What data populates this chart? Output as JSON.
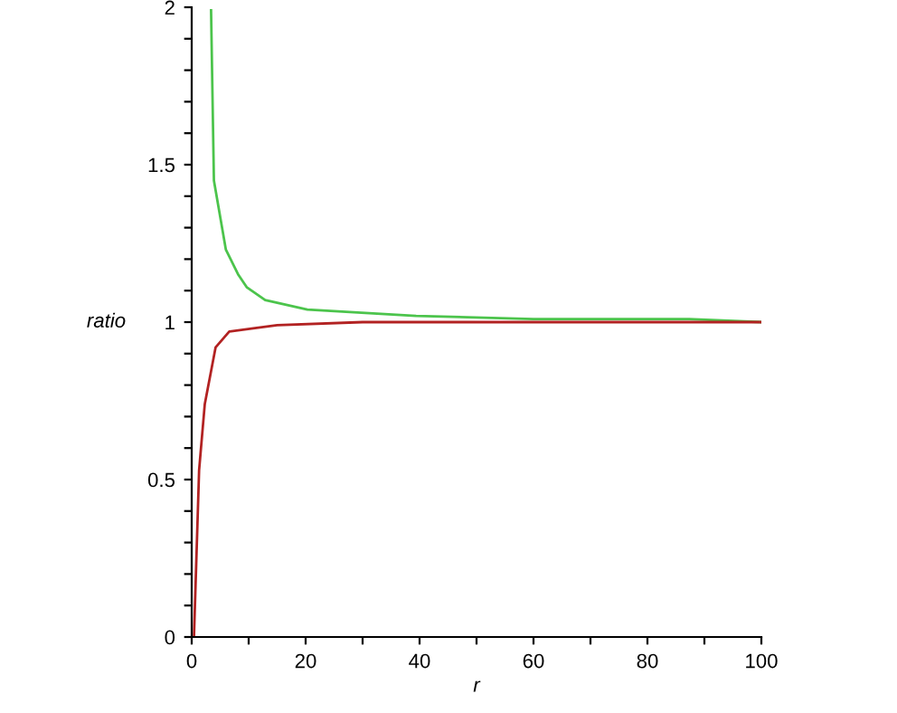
{
  "chart_data": {
    "type": "line",
    "xlabel": "r",
    "ylabel": "ratio",
    "xlim": [
      0,
      100
    ],
    "ylim": [
      0,
      2
    ],
    "xticks": [
      0,
      {
        "value": 10,
        "label": null
      },
      20,
      {
        "value": 30,
        "label": null
      },
      40,
      {
        "value": 50,
        "label": null
      },
      60,
      {
        "value": 70,
        "label": null
      },
      80,
      {
        "value": 90,
        "label": null
      },
      100
    ],
    "yticks": [
      0,
      {
        "value": 0.1,
        "label": null
      },
      {
        "value": 0.2,
        "label": null
      },
      {
        "value": 0.3,
        "label": null
      },
      {
        "value": 0.4,
        "label": null
      },
      0.5,
      {
        "value": 0.6,
        "label": null
      },
      {
        "value": 0.7,
        "label": null
      },
      {
        "value": 0.8,
        "label": null
      },
      {
        "value": 0.9,
        "label": null
      },
      1,
      {
        "value": 1.1,
        "label": null
      },
      {
        "value": 1.2,
        "label": null
      },
      {
        "value": 1.3,
        "label": null
      },
      {
        "value": 1.4,
        "label": null
      },
      1.5,
      {
        "value": 1.6,
        "label": null
      },
      {
        "value": 1.7,
        "label": null
      },
      {
        "value": 1.8,
        "label": null
      },
      {
        "value": 1.9,
        "label": null
      },
      2
    ],
    "grid": false,
    "legend": false,
    "marker": "none",
    "line_style": "solid",
    "series": [
      {
        "color": "#4cc44c",
        "x": [
          3.4,
          3.9,
          6.0,
          8.2,
          9.7,
          12.9,
          20.3,
          29.8,
          39.4,
          60,
          87,
          100
        ],
        "values": [
          1.99,
          1.45,
          1.23,
          1.15,
          1.11,
          1.07,
          1.04,
          1.03,
          1.02,
          1.01,
          1.01,
          1.0
        ]
      },
      {
        "color": "#b22222",
        "x": [
          0.4,
          1.3,
          2.3,
          4.2,
          6.6,
          10.8,
          15,
          30,
          60,
          100
        ],
        "values": [
          0,
          0.53,
          0.74,
          0.92,
          0.97,
          0.98,
          0.99,
          1.0,
          1.0,
          1.0
        ]
      }
    ]
  }
}
